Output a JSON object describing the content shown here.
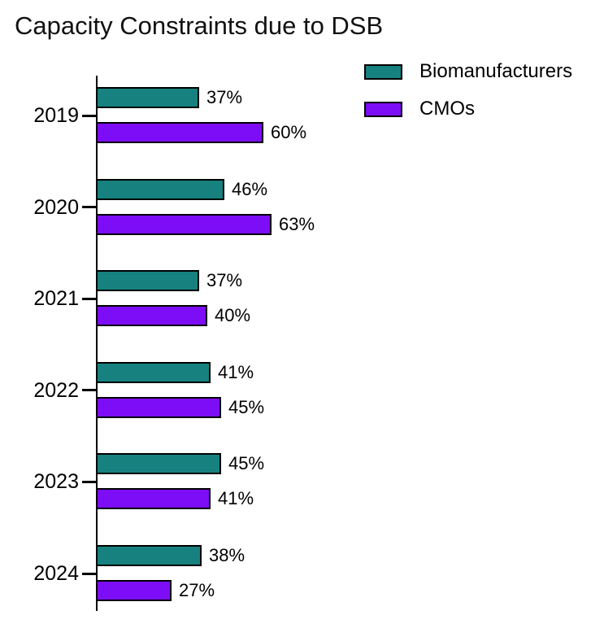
{
  "title": "Capacity Constraints due to DSB",
  "chart_data": {
    "type": "bar",
    "orientation": "horizontal",
    "title": "Capacity Constraints due to DSB",
    "categories": [
      "2019",
      "2020",
      "2021",
      "2022",
      "2023",
      "2024"
    ],
    "series": [
      {
        "name": "Biomanufacturers",
        "color": "#17817f",
        "values": [
          37,
          46,
          37,
          41,
          45,
          38
        ]
      },
      {
        "name": "CMOs",
        "color": "#7d0df7",
        "values": [
          60,
          63,
          40,
          45,
          41,
          27
        ]
      }
    ],
    "value_suffix": "%",
    "data_labels": true,
    "grid": false,
    "value_axis_visible": false,
    "bar_outline_color": "#000000",
    "legend_position": "top-right"
  }
}
